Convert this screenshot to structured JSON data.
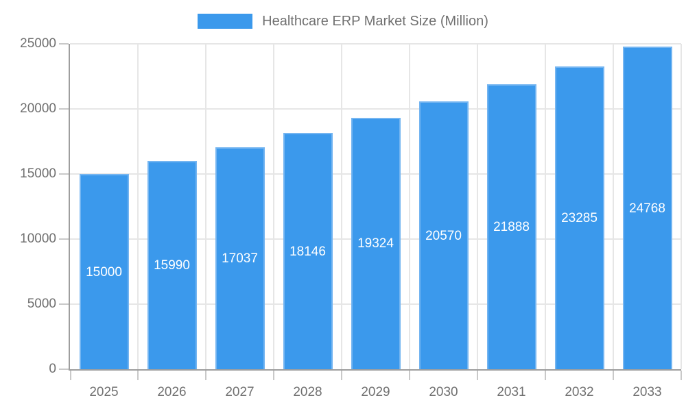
{
  "legend": {
    "series_label": "Healthcare ERP Market Size (Million)"
  },
  "chart_data": {
    "type": "bar",
    "title": "Healthcare ERP Market Size (Million)",
    "categories": [
      "2025",
      "2026",
      "2027",
      "2028",
      "2029",
      "2030",
      "2031",
      "2032",
      "2033"
    ],
    "series": [
      {
        "name": "Healthcare ERP Market Size (Million)",
        "values": [
          15000,
          15990,
          17037,
          18146,
          19324,
          20570,
          21888,
          23285,
          24768
        ]
      }
    ],
    "xlabel": "",
    "ylabel": "",
    "ylim": [
      0,
      25000
    ],
    "yticks": [
      0,
      5000,
      10000,
      15000,
      20000,
      25000
    ],
    "grid": "horizontal-and-vertical",
    "legend_position": "top",
    "data_labels_position": "inside-center",
    "colors": {
      "bar_fill": "#3B99EC",
      "bar_border": "#74B5F1",
      "value_label_text": "#FFFFFF",
      "axis_line": "#9E9E9E",
      "tick_mark": "#C9C9C9",
      "gridline": "#E6E6E6",
      "axis_label_text": "#707070",
      "legend_text": "#707070",
      "background": "#FFFFFF"
    }
  }
}
